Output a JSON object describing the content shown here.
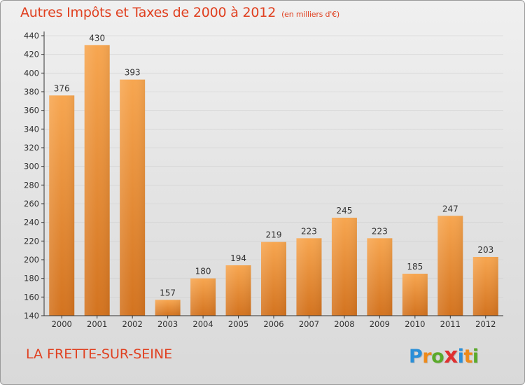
{
  "title": "Autres Impôts et Taxes de 2000 à 2012",
  "unit": "(en milliers d'€)",
  "place": "LA FRETTE-SUR-SEINE",
  "logo": {
    "letters": [
      "P",
      "r",
      "o",
      "x",
      "i",
      "t",
      "i"
    ],
    "colors": [
      "#2a8fd8",
      "#ee8a1a",
      "#5aaa2a",
      "#e03030",
      "#2a8fd8",
      "#ee8a1a",
      "#5aaa2a"
    ]
  },
  "colors": {
    "bar_top": "#f7a650",
    "bar_bottom": "#d3731f",
    "axis": "#333333",
    "grid": "#cfcfcf"
  },
  "chart_data": {
    "type": "bar",
    "categories": [
      "2000",
      "2001",
      "2002",
      "2003",
      "2004",
      "2005",
      "2006",
      "2007",
      "2008",
      "2009",
      "2010",
      "2011",
      "2012"
    ],
    "values": [
      376,
      430,
      393,
      157,
      180,
      194,
      219,
      223,
      245,
      223,
      185,
      247,
      203
    ],
    "ylim": [
      140,
      440
    ],
    "yticks": [
      140,
      160,
      180,
      200,
      220,
      240,
      260,
      280,
      300,
      320,
      340,
      360,
      380,
      400,
      420,
      440
    ],
    "grid": true,
    "legend": "none"
  }
}
